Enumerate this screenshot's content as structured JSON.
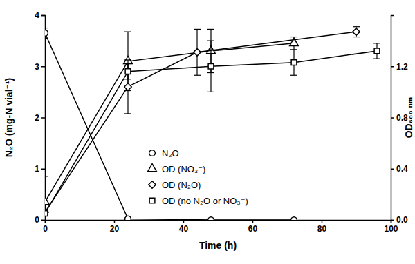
{
  "chart_data": {
    "type": "line",
    "x_label": "Time (h)",
    "y_label": "N₂O (mg-N vial⁻¹)",
    "y2_label": "OD₆₀₀ ₙₘ",
    "xlim": [
      0,
      100
    ],
    "xticks": [
      0,
      20,
      40,
      60,
      80,
      100
    ],
    "ylim": [
      0,
      4
    ],
    "yticks": [
      0,
      1,
      2,
      3,
      4
    ],
    "y2lim": [
      0,
      1.6
    ],
    "y2ticks": [
      {
        "value": 0,
        "label": "0.0"
      },
      {
        "value": 0.4,
        "label": "0.4"
      },
      {
        "value": 0.8,
        "label": "0.8"
      },
      {
        "value": 1.2,
        "label": "1.2"
      }
    ],
    "legend": "lower center",
    "series": [
      {
        "name": "N₂O",
        "color": "#000000",
        "marker": "circle",
        "x": [
          0,
          24,
          48,
          72
        ],
        "values": [
          3.65,
          0.02,
          0,
          0
        ],
        "errors": [
          0.1,
          0.02,
          0,
          0
        ]
      },
      {
        "name": "OD (NO₃⁻)",
        "color": "#000000",
        "marker": "triangle",
        "axis": "y2",
        "x": [
          0,
          24,
          48,
          72
        ],
        "values": [
          0.14,
          1.24,
          1.32,
          1.38
        ],
        "errors": [
          0.2,
          0.23,
          0.17,
          0.05
        ]
      },
      {
        "name": "OD (N₂O)",
        "color": "#000000",
        "marker": "diamond",
        "axis": "y2",
        "x": [
          0,
          24,
          44,
          90
        ],
        "values": [
          0.06,
          1.04,
          1.31,
          1.47
        ],
        "errors": [
          0.02,
          0.21,
          0.18,
          0.04
        ]
      },
      {
        "name": "OD (no N₂O or NO₃⁻)",
        "color": "#000000",
        "marker": "square",
        "axis": "y2",
        "x": [
          0,
          24,
          48,
          72,
          96
        ],
        "values": [
          0.05,
          1.16,
          1.2,
          1.23,
          1.32
        ],
        "errors": [
          0.02,
          0.06,
          0.2,
          0.1,
          0.06
        ]
      }
    ]
  }
}
